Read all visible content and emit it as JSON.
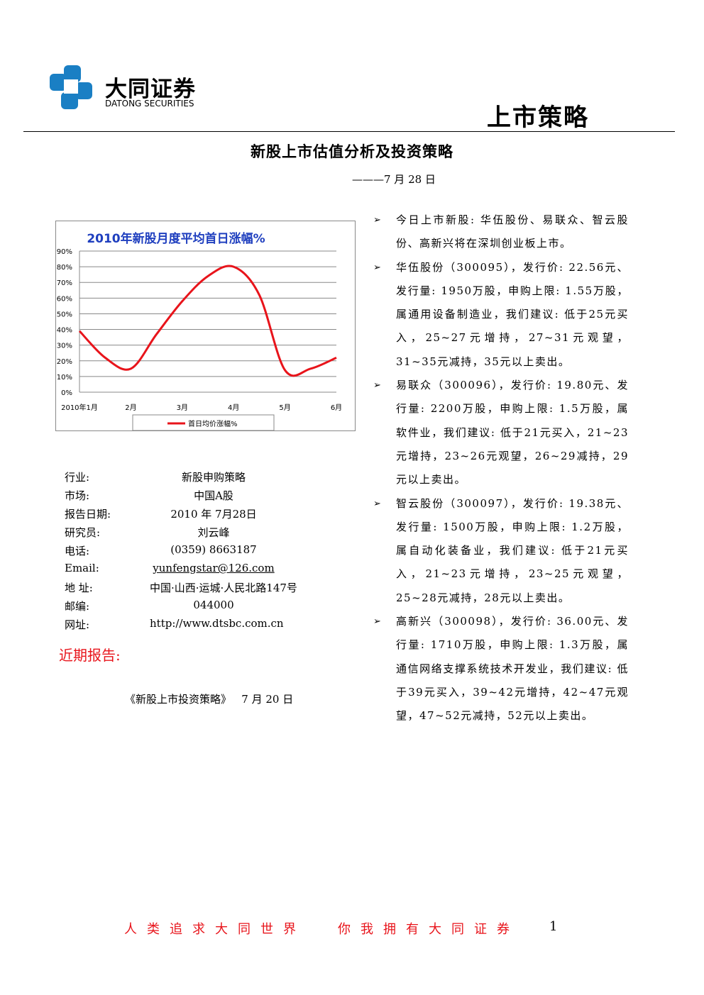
{
  "header": {
    "logo_cn": "大同证券",
    "logo_en": "DATONG SECURITIES",
    "section": "上市策略"
  },
  "title": "新股上市估值分析及投资策略",
  "date": "———7 月 28 日",
  "chart_data": {
    "type": "line",
    "title": "2010年新股月度平均首日涨幅%",
    "categories": [
      "2010年1月",
      null,
      "2月",
      null,
      "3月",
      null,
      "4月",
      null,
      "5月",
      null,
      "6月"
    ],
    "series": [
      {
        "name": "首日均价涨幅%",
        "color": "#e8141b",
        "values": [
          39,
          22,
          15,
          37,
          58,
          74,
          80,
          62,
          14,
          15,
          22
        ]
      }
    ],
    "ylim": [
      0,
      90
    ],
    "yticks": [
      {
        "value": 0,
        "label": "0%"
      },
      {
        "value": 10,
        "label": "10%"
      },
      {
        "value": 20,
        "label": "20%"
      },
      {
        "value": 30,
        "label": "30%"
      },
      {
        "value": 40,
        "label": "40%"
      },
      {
        "value": 50,
        "label": "50%"
      },
      {
        "value": 60,
        "label": "60%"
      },
      {
        "value": 70,
        "label": "70%"
      },
      {
        "value": 80,
        "label": "80%"
      },
      {
        "value": 90,
        "label": "90%"
      }
    ],
    "grid": true,
    "legend": "bottom"
  },
  "info": [
    [
      "行业:",
      "新股申购策略"
    ],
    [
      "市场:",
      "中国A股"
    ],
    [
      "报告日期:",
      "2010 年 7月28日"
    ],
    [
      "研究员:",
      "刘云峰"
    ],
    [
      "电话:",
      "(0359) 8663187"
    ],
    [
      "Email:",
      "yunfengstar@126.com"
    ],
    [
      "地 址:",
      "中国·山西·运城·人民北路147号"
    ],
    [
      "邮编:",
      "044000"
    ],
    [
      "网址:",
      "http://www.dtsbc.com.cn"
    ]
  ],
  "recent_reports": {
    "heading": "近期报告:",
    "items": [
      "《新股上市投资策略》   7 月 20 日"
    ]
  },
  "bullets": [
    "今日上市新股:  华伍股份、易联众、智云股份、高新兴将在深圳创业板上市。",
    "华伍股份（300095），发行价: 22.56元、发行量: 1950万股，申购上限: 1.55万股，属通用设备制造业，我们建议: 低于25元买入，25~27元增持，27~31元观望，31~35元减持，35元以上卖出。",
    "易联众（300096），发行价: 19.80元、发行量: 2200万股，申购上限: 1.5万股，属软件业，我们建议: 低于21元买入，21~23元增持，23~26元观望，26~29减持，29元以上卖出。",
    "智云股份（300097），发行价: 19.38元、发行量: 1500万股，申购上限: 1.2万股，属自动化装备业，我们建议: 低于21元买入，21~23元增持，23~25元观望，25~28元减持，28元以上卖出。",
    "高新兴（300098），发行价: 36.00元、发行量: 1710万股，申购上限: 1.3万股，属通信网络支撑系统技术开发业，我们建议: 低于39元买入，39~42元增持，42~47元观望，47~52元减持，52元以上卖出。"
  ],
  "footer": {
    "slogan_left": "人类追求大同世界",
    "slogan_right": "你我拥有大同证券",
    "page": "1"
  }
}
